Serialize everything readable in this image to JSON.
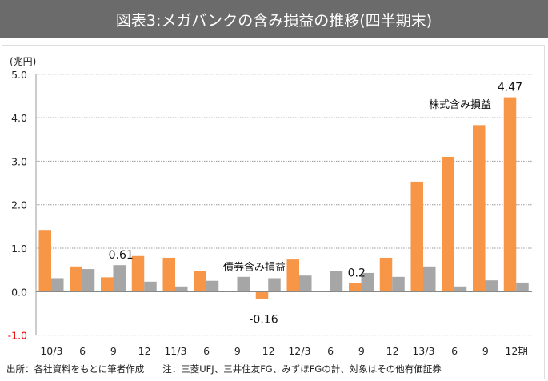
{
  "title": "図表3:メガバンクの含み損益の推移(四半期末)",
  "unit": "(兆円)",
  "footnote": "出所：各社資料をもとに筆者作成　　注：三菱UFJ、三井住友FG、みずほFGの計、対象はその他有価証券",
  "chart_data": {
    "type": "bar",
    "title": "メガバンクの含み損益の推移(四半期末)",
    "ylabel": "兆円",
    "ylim": [
      -1.0,
      5.0
    ],
    "yticks": [
      "5.0",
      "4.0",
      "3.0",
      "2.0",
      "1.0",
      "0.0",
      "-1.0"
    ],
    "grid": true,
    "categories": [
      "10/3",
      "6",
      "9",
      "12",
      "11/3",
      "6",
      "9",
      "12",
      "12/3",
      "6",
      "9",
      "12",
      "13/3",
      "6",
      "9",
      "12期"
    ],
    "series": [
      {
        "name": "株式含み損益",
        "color": "#f79646",
        "values": [
          1.42,
          0.58,
          0.33,
          0.82,
          0.78,
          0.47,
          0.01,
          -0.16,
          0.74,
          -0.01,
          0.2,
          0.78,
          2.53,
          3.1,
          3.83,
          4.47
        ]
      },
      {
        "name": "債券含み損益",
        "color": "#a6a6a6",
        "values": [
          0.31,
          0.52,
          0.61,
          0.23,
          0.12,
          0.25,
          0.34,
          0.31,
          0.37,
          0.47,
          0.43,
          0.34,
          0.58,
          0.12,
          0.26,
          0.21
        ]
      }
    ],
    "data_labels": [
      {
        "text": "0.61",
        "series": 1,
        "index": 2
      },
      {
        "text": "-0.16",
        "series": 0,
        "index": 7
      },
      {
        "text": "0.2",
        "series": 0,
        "index": 10
      },
      {
        "text": "4.47",
        "series": 0,
        "index": 15
      }
    ],
    "annotations": [
      {
        "text": "債券含み損益",
        "series": 1
      },
      {
        "text": "株式含み損益",
        "series": 0
      }
    ]
  }
}
